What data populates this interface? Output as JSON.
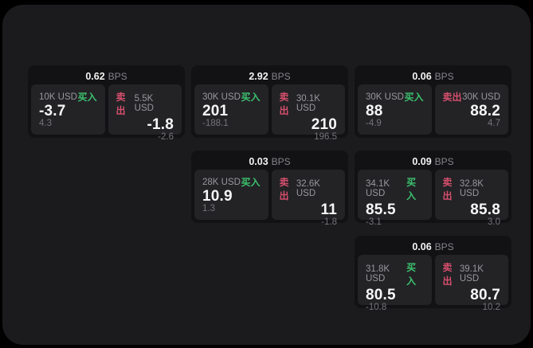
{
  "labels": {
    "buy": "买入",
    "sell": "卖出",
    "bps": "BPS"
  },
  "colors": {
    "buy_green": "#3cc16e",
    "sell_red": "#d74f6d",
    "window_bg": "#1b1b1d",
    "card_bg": "#121214",
    "panel_bg": "#232326"
  },
  "cards": [
    {
      "bps": "0.62",
      "buy": {
        "amount": "10K USD",
        "price": "-3.7",
        "delta": "4.3"
      },
      "sell": {
        "amount": "5.5K USD",
        "price": "-1.8",
        "delta": "-2.6"
      }
    },
    {
      "bps": "2.92",
      "buy": {
        "amount": "30K USD",
        "price": "201",
        "delta": "-188.1"
      },
      "sell": {
        "amount": "30.1K USD",
        "price": "210",
        "delta": "196.5"
      }
    },
    {
      "bps": "0.06",
      "buy": {
        "amount": "30K USD",
        "price": "88",
        "delta": "-4.9"
      },
      "sell": {
        "amount": "30K USD",
        "price": "88.2",
        "delta": "4.7"
      }
    },
    {
      "bps": "0.03",
      "buy": {
        "amount": "28K USD",
        "price": "10.9",
        "delta": "1.3"
      },
      "sell": {
        "amount": "32.6K USD",
        "price": "11",
        "delta": "-1.8"
      }
    },
    {
      "bps": "0.09",
      "buy": {
        "amount": "34.1K USD",
        "price": "85.5",
        "delta": "-3.1"
      },
      "sell": {
        "amount": "32.8K USD",
        "price": "85.8",
        "delta": "3.0"
      }
    },
    {
      "bps": "0.06",
      "buy": {
        "amount": "31.8K USD",
        "price": "80.5",
        "delta": "-10.8"
      },
      "sell": {
        "amount": "39.1K USD",
        "price": "80.7",
        "delta": "10.2"
      }
    }
  ]
}
